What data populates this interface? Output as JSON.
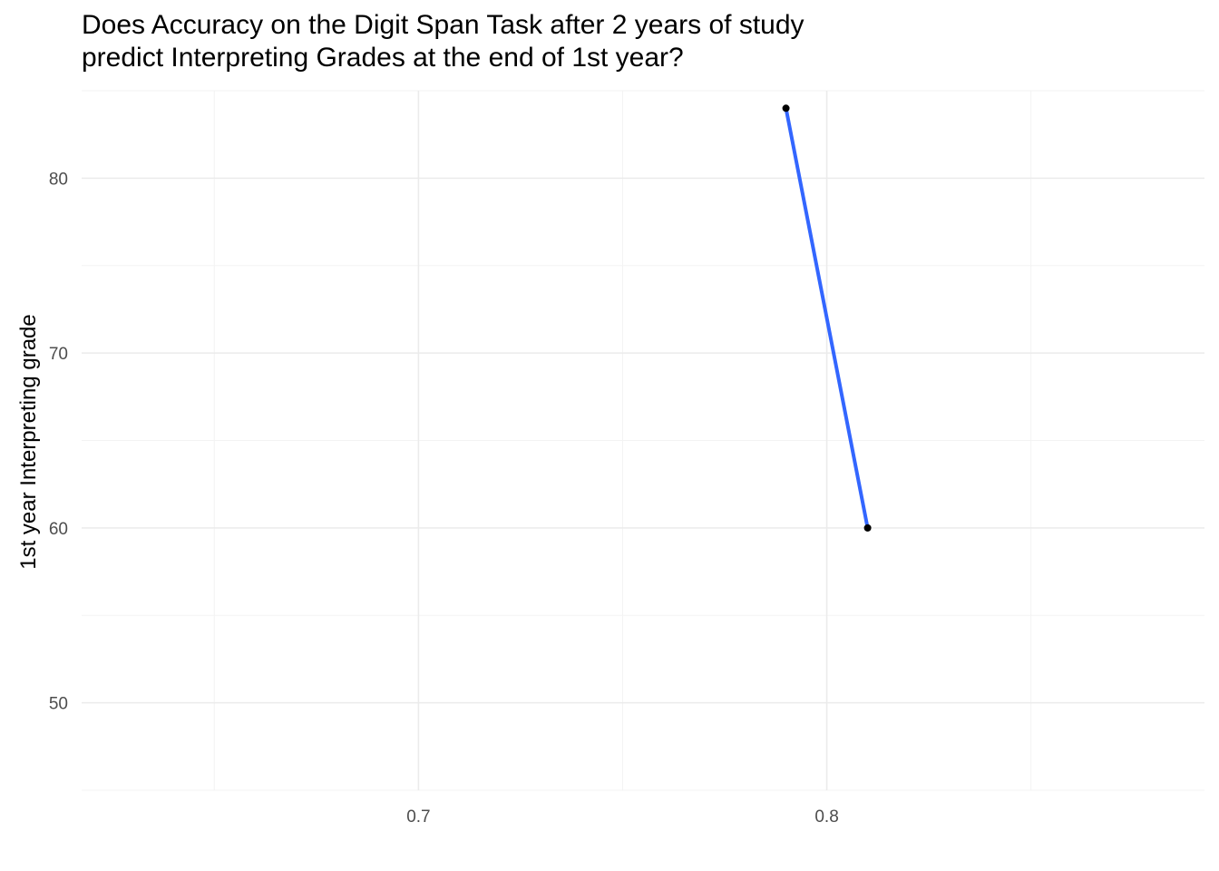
{
  "chart_data": {
    "type": "line",
    "title_lines": [
      "Does Accuracy on the Digit Span Task after 2 years of study",
      "predict Interpreting Grades at the end of 1st year?"
    ],
    "xlabel": "",
    "ylabel": "1st year Interpreting grade",
    "x_ticks": [
      0.7,
      0.8
    ],
    "y_ticks": [
      50,
      60,
      70,
      80
    ],
    "xlim": [
      0.6175,
      0.8925
    ],
    "ylim": [
      45,
      85
    ],
    "grid": true,
    "points": [
      {
        "x": 0.79,
        "y": 84
      },
      {
        "x": 0.81,
        "y": 60
      }
    ],
    "fit_line": {
      "x": [
        0.79,
        0.81
      ],
      "y": [
        84,
        60
      ]
    },
    "colors": {
      "fit_line": "#3366ff",
      "points": "#000000",
      "grid_major": "#ebebeb",
      "grid_minor": "#f3f3f3",
      "tick_text": "#4d4d4d"
    }
  }
}
